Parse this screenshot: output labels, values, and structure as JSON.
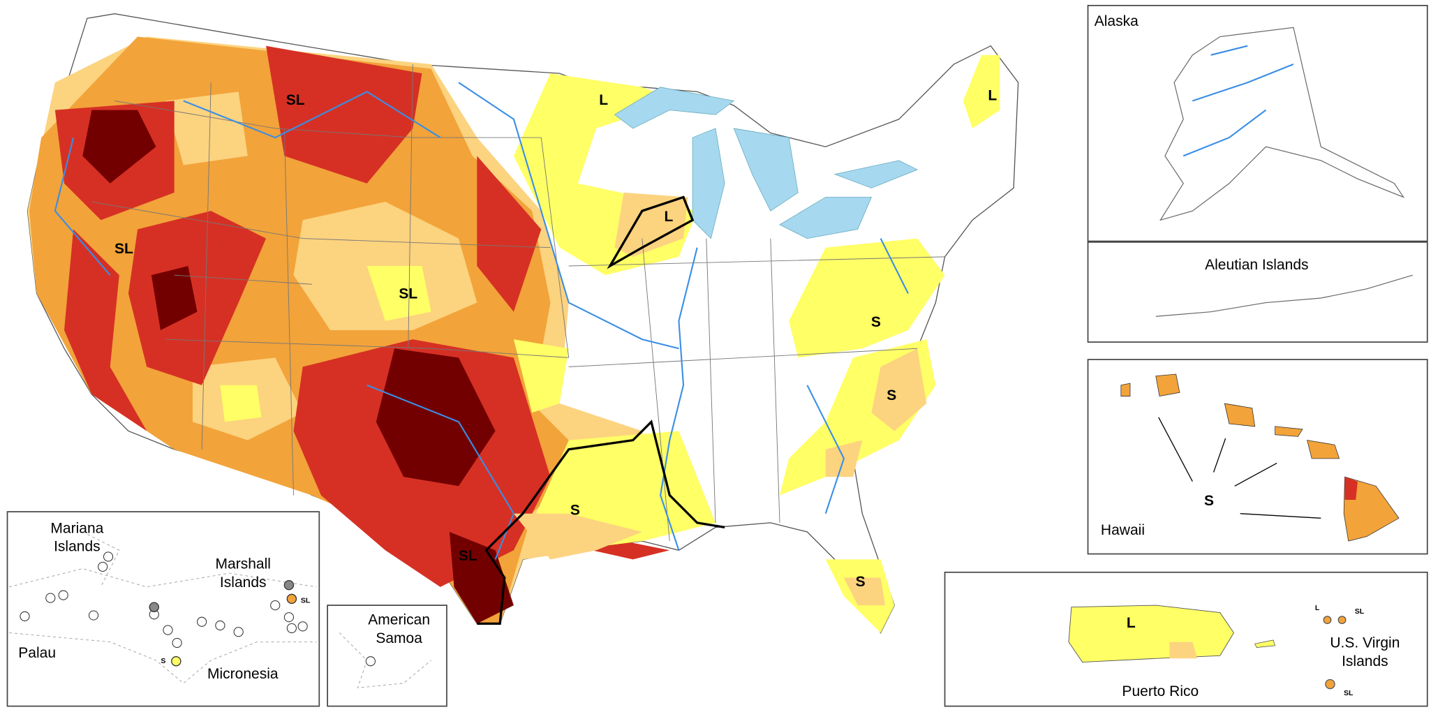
{
  "insets": {
    "alaska": "Alaska",
    "aleutian": "Aleutian Islands",
    "hawaii": "Hawaii",
    "puerto_rico": "Puerto Rico",
    "virgin_islands": [
      "U.S. Virgin",
      "Islands"
    ],
    "mariana": [
      "Mariana",
      "Islands"
    ],
    "marshall": [
      "Marshall",
      "Islands"
    ],
    "palau": "Palau",
    "micronesia": "Micronesia",
    "samoa": [
      "American",
      "Samoa"
    ]
  },
  "impact_labels": [
    "SL",
    "L",
    "L",
    "SL",
    "L",
    "SL",
    "S",
    "S",
    "S",
    "SL",
    "S",
    "S",
    "L",
    "SL",
    "S",
    "L",
    "SL",
    "SL"
  ]
}
